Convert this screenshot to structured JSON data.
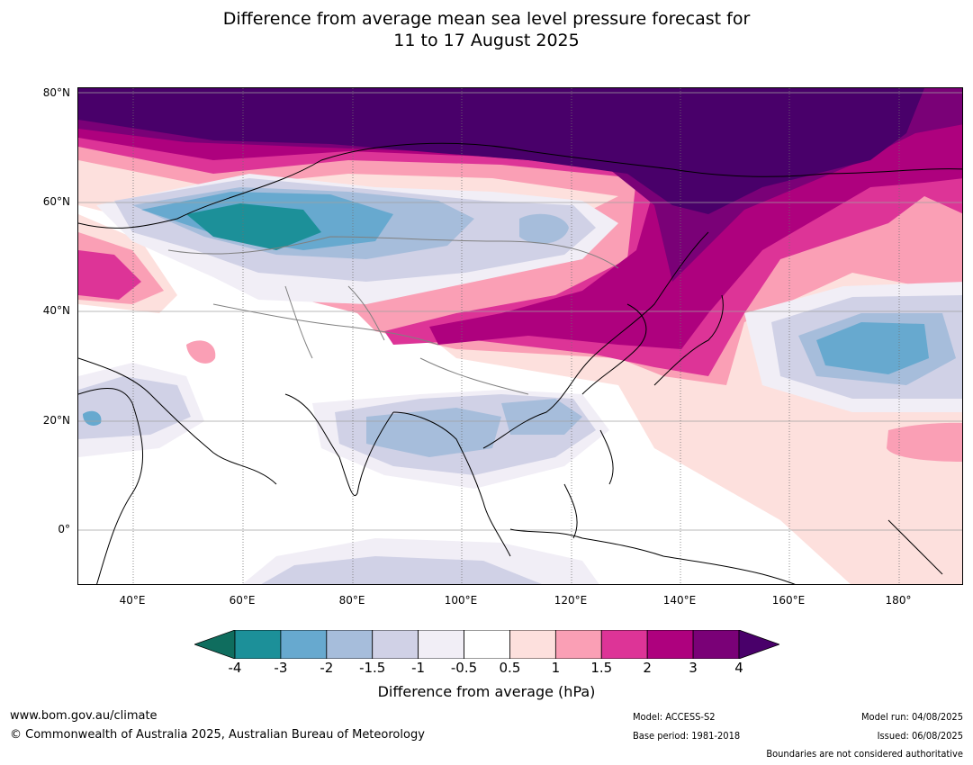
{
  "title": {
    "line1": "Difference from average mean sea level pressure forecast for",
    "line2": "11 to 17 August 2025"
  },
  "map": {
    "lat_labels": [
      "80°N",
      "60°N",
      "40°N",
      "20°N",
      "0°"
    ],
    "lon_labels": [
      "40°E",
      "60°E",
      "80°E",
      "100°E",
      "120°E",
      "140°E",
      "160°E",
      "180°"
    ],
    "graticule": "on",
    "colors": {
      "land_outline": "#000000",
      "boundary": "#808080",
      "grid": "#a0a0a0"
    }
  },
  "colorbar": {
    "ticks": [
      "-4",
      "-3",
      "-2",
      "-1.5",
      "-1",
      "-0.5",
      "0.5",
      "1",
      "1.5",
      "2",
      "3",
      "4"
    ],
    "colors": [
      "#0f6d5e",
      "#1c9099",
      "#67a9cf",
      "#a6bddb",
      "#d0d1e6",
      "#f1eef6",
      "#ffffff",
      "#fde0dd",
      "#fa9fb5",
      "#dd3497",
      "#ae017e",
      "#7a0177",
      "#49006a"
    ],
    "label": "Difference from average (hPa)"
  },
  "footer": {
    "url": "www.bom.gov.au/climate",
    "copyright": "© Commonwealth of Australia 2025, Australian Bureau of Meteorology",
    "model": "Model: ACCESS-S2",
    "base_period": "Base period: 1981-2018",
    "model_run": "Model run: 04/08/2025",
    "issued": "Issued: 06/08/2025",
    "disclaimer": "Boundaries are not considered authoritative"
  }
}
